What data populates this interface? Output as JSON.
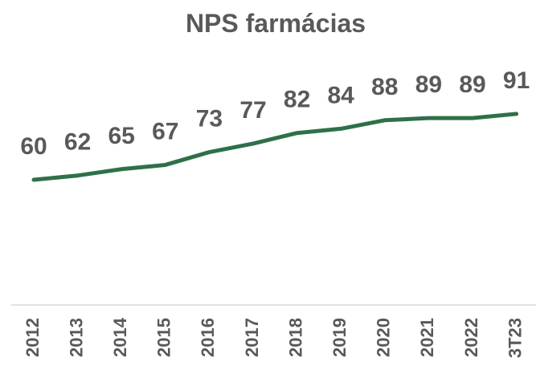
{
  "chart_data": {
    "type": "line",
    "title": "NPS farmácias",
    "categories": [
      "2012",
      "2013",
      "2014",
      "2015",
      "2016",
      "2017",
      "2018",
      "2019",
      "2020",
      "2021",
      "2022",
      "3T23"
    ],
    "series": [
      {
        "color": "#2e7049",
        "values": [
          60,
          62,
          65,
          67,
          73,
          77,
          82,
          84,
          88,
          89,
          89,
          91
        ]
      }
    ],
    "ylim": [
      0,
      100
    ]
  }
}
